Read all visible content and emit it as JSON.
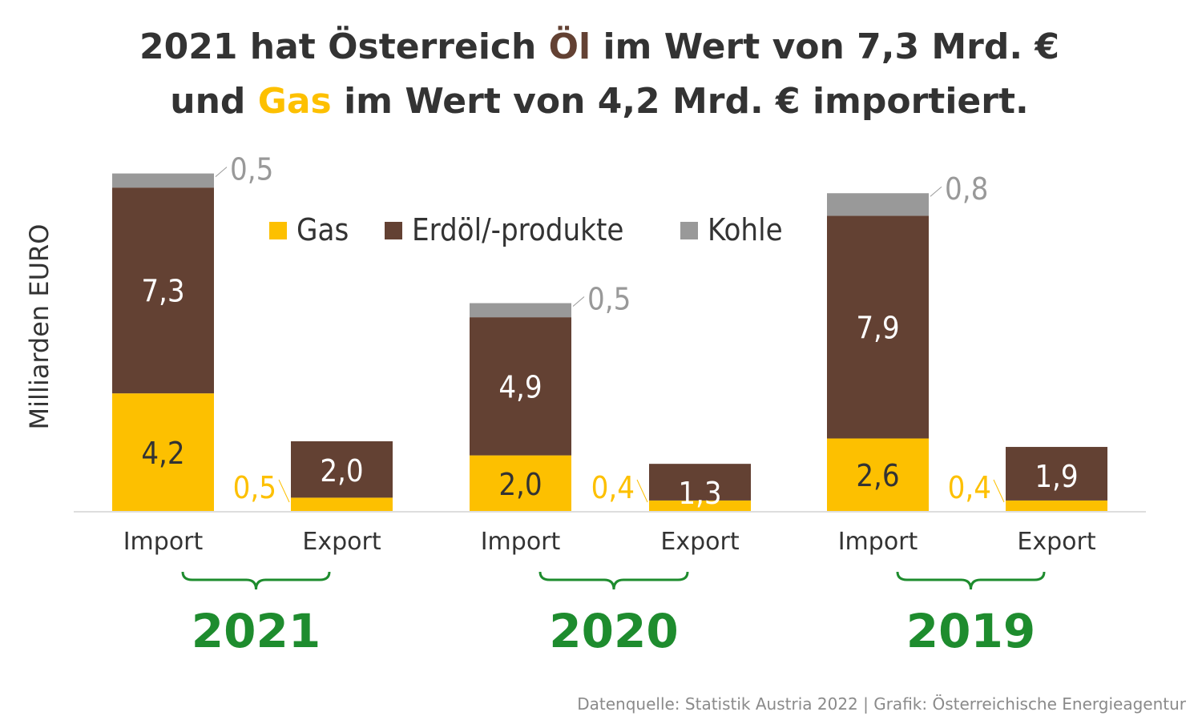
{
  "title": {
    "line1_a": "2021 hat Österreich ",
    "line1_b": "Öl",
    "line1_c": " im Wert von 7,3 Mrd. €",
    "line2_a": "und ",
    "line2_b": "Gas",
    "line2_c": " im Wert von 4,2 Mrd. € importiert."
  },
  "source": "Datenquelle: Statistik Austria 2022 | Grafik: Österreichische Energieagentur",
  "colors": {
    "gas": "#FDC000",
    "oil": "#634133",
    "coal": "#999999",
    "year": "#1E8C2E",
    "text": "#333333"
  },
  "chart_data": {
    "type": "bar",
    "stacked": true,
    "ylabel": "Milliarden EURO",
    "grid": false,
    "legend_placement": "top-center",
    "groups": [
      "2021",
      "2020",
      "2019"
    ],
    "categories": [
      "Import",
      "Export",
      "Import",
      "Export",
      "Import",
      "Export"
    ],
    "series": [
      {
        "name": "Gas",
        "color": "#FDC000",
        "values": [
          4.2,
          0.5,
          2.0,
          0.4,
          2.6,
          0.4
        ],
        "labels": [
          "4,2",
          "0,5",
          "2,0",
          "0,4",
          "2,6",
          "0,4"
        ]
      },
      {
        "name": "Erdöl/-produkte",
        "color": "#634133",
        "values": [
          7.3,
          2.0,
          4.9,
          1.3,
          7.9,
          1.9
        ],
        "labels": [
          "7,3",
          "2,0",
          "4,9",
          "1,3",
          "7,9",
          "1,9"
        ]
      },
      {
        "name": "Kohle",
        "color": "#999999",
        "values": [
          0.5,
          0,
          0.5,
          0,
          0.8,
          0
        ],
        "labels": [
          "0,5",
          "",
          "0,5",
          "",
          "0,8",
          ""
        ]
      }
    ]
  }
}
